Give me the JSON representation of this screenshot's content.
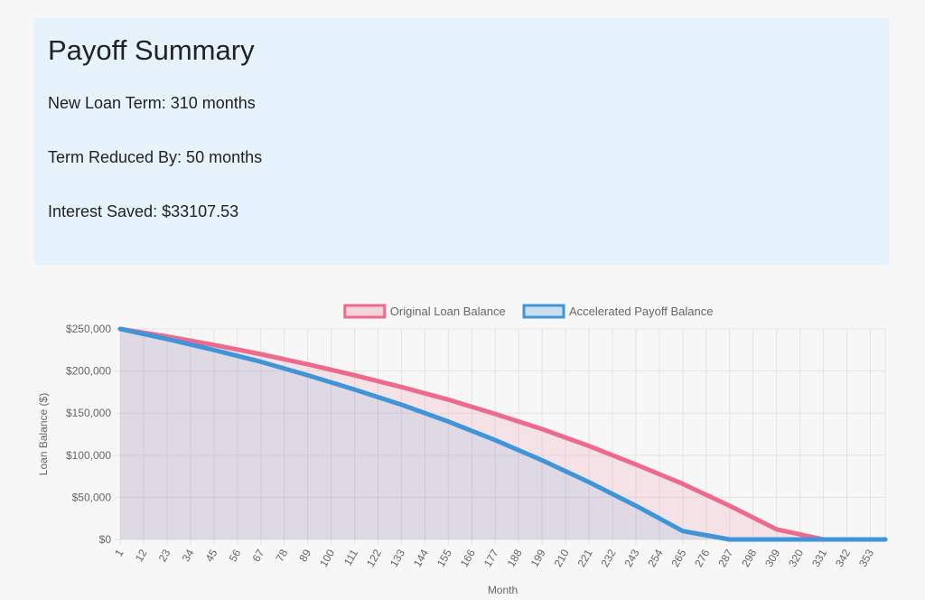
{
  "summary": {
    "title": "Payoff Summary",
    "new_term_label": "New Loan Term: 310 months",
    "term_reduced_label": "Term Reduced By: 50 months",
    "interest_saved_label": "Interest Saved: $33107.53"
  },
  "colors": {
    "original": "#ee6a8c",
    "original_fill": "rgba(238,106,140,0.15)",
    "accelerated": "#3f95d8",
    "accelerated_fill": "rgba(63,149,216,0.12)"
  },
  "chart_data": {
    "type": "area",
    "xlabel": "Month",
    "ylabel": "Loan Balance ($)",
    "ylim": [
      0,
      250000
    ],
    "yticks": [
      0,
      50000,
      100000,
      150000,
      200000,
      250000
    ],
    "ytick_labels": [
      "$0",
      "$50,000",
      "$100,000",
      "$150,000",
      "$200,000",
      "$250,000"
    ],
    "xlim": [
      1,
      360
    ],
    "xtick_labels": [
      "1",
      "12",
      "23",
      "34",
      "45",
      "56",
      "67",
      "78",
      "89",
      "100",
      "111",
      "122",
      "133",
      "144",
      "155",
      "166",
      "177",
      "188",
      "199",
      "210",
      "221",
      "232",
      "243",
      "254",
      "265",
      "276",
      "287",
      "298",
      "309",
      "320",
      "331",
      "342",
      "353"
    ],
    "legend_position": "top",
    "grid": true,
    "series": [
      {
        "name": "Original Loan Balance",
        "x": [
          1,
          23,
          45,
          67,
          89,
          111,
          133,
          155,
          177,
          199,
          221,
          243,
          265,
          287,
          309,
          331,
          353,
          360
        ],
        "values": [
          250000,
          241000,
          231000,
          220000,
          208000,
          195000,
          181000,
          166000,
          149000,
          131000,
          111000,
          89000,
          66000,
          40000,
          12000,
          0,
          0,
          0
        ]
      },
      {
        "name": "Accelerated Payoff Balance",
        "x": [
          1,
          23,
          45,
          67,
          89,
          111,
          133,
          155,
          177,
          199,
          221,
          243,
          265,
          287,
          309,
          331,
          353,
          360
        ],
        "values": [
          250000,
          238000,
          225000,
          211000,
          195000,
          178000,
          160000,
          140000,
          118000,
          94000,
          68000,
          40000,
          10000,
          0,
          0,
          0,
          0,
          0
        ]
      }
    ]
  }
}
